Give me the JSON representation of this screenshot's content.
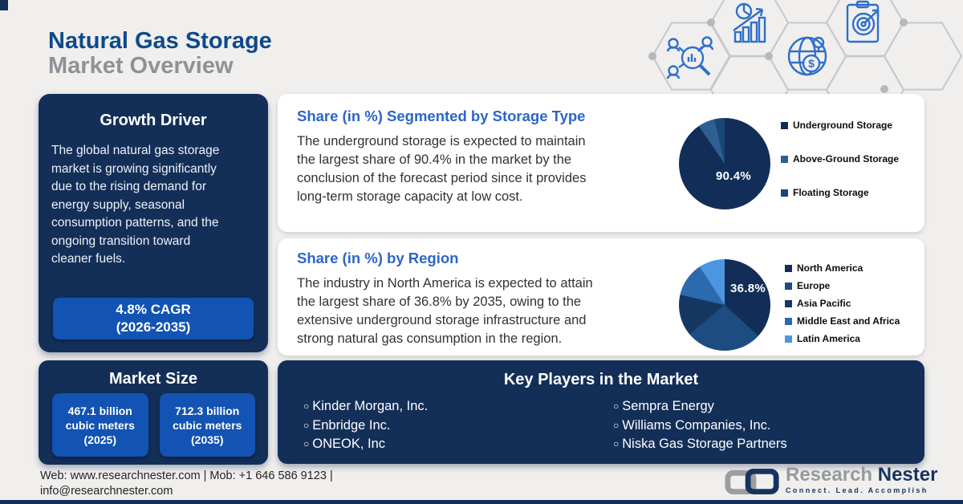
{
  "page": {
    "title_line1": "Natural Gas Storage",
    "title_line2": "Market Overview"
  },
  "colors": {
    "background": "#f0efed",
    "navy_panel": "#132f58",
    "accent_button_blue": "#1253b4",
    "heading_blue": "#2c66c9",
    "title_blue": "#0e4a88",
    "title_gray": "#8e9196",
    "icon_line_blue": "#2e6fcb"
  },
  "decor_icons": [
    "market-research-icon",
    "growth-analytics-icon",
    "global-market-icon",
    "target-clipboard-icon"
  ],
  "growth_driver": {
    "title": "Growth Driver",
    "body": "The global natural gas storage\nmarket is growing significantly\ndue to the rising demand for\nenergy supply, seasonal\nconsumption patterns, and the\nongoing transition toward\ncleaner fuels.",
    "cagr_badge": "4.8% CAGR\n(2026-2035)"
  },
  "storage_panel": {
    "title": "Share (in %) Segmented by Storage Type",
    "body": "The underground storage is expected to maintain\nthe largest share of 90.4% in the market by the\nconclusion of the forecast period since it provides\nlong-term storage capacity at low cost."
  },
  "region_panel": {
    "title": "Share (in %) by Region",
    "body": "The industry in North America is expected to attain\nthe largest share of 36.8% by 2035, owing to the\nextensive underground storage infrastructure and\nstrong natural gas consumption in the region."
  },
  "chart_data": [
    {
      "type": "pie",
      "title": "Share (in %) Segmented by Storage Type",
      "labels": [
        "Underground Storage",
        "Above-Ground Storage",
        "Floating Storage"
      ],
      "values": [
        90.4,
        6.0,
        3.6
      ],
      "colors": [
        "#122e58",
        "#2d5f92",
        "#1a4678"
      ],
      "center_label": "90.4%",
      "legend_position": "right",
      "start_angle_deg": 0,
      "direction": "clockwise"
    },
    {
      "type": "pie",
      "title": "Share (in %) by Region",
      "labels": [
        "North America",
        "Europe",
        "Asia Pacific",
        "Middle East and Africa",
        "Latin America"
      ],
      "values": [
        36.8,
        27.1,
        14.7,
        12.2,
        9.2
      ],
      "colors": [
        "#122e58",
        "#1d4d80",
        "#173763",
        "#2b6aae",
        "#4c96e0"
      ],
      "center_label": "36.8%",
      "legend_position": "right",
      "start_angle_deg": 0,
      "direction": "clockwise"
    }
  ],
  "market_size": {
    "title": "Market Size",
    "value_2025": "467.1 billion\ncubic meters\n(2025)",
    "value_2035": "712.3 billion\ncubic meters\n(2035)"
  },
  "key_players": {
    "title": "Key Players in the Market",
    "bullet": "○",
    "columns": [
      [
        "Kinder Morgan, Inc.",
        "Enbridge Inc.",
        "ONEOK, Inc"
      ],
      [
        "Sempra Energy",
        "Williams Companies, Inc.",
        "Niska Gas Storage Partners"
      ]
    ]
  },
  "footer": {
    "contact": "Web: www.researchnester.com | Mob: +1 646 586 9123 |\ninfo@researchnester.com"
  },
  "logo": {
    "name_part1": "Research",
    "name_part2": " Nester",
    "tagline": "Connect. Lead. Accomplish"
  }
}
